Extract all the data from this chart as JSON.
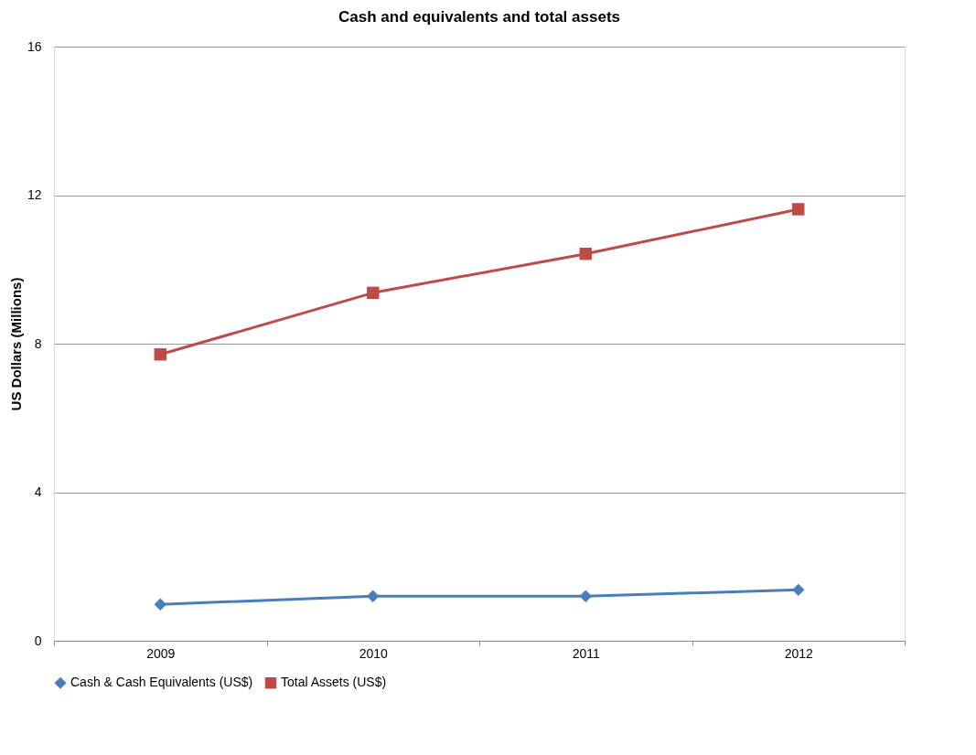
{
  "chart_data": {
    "type": "line",
    "title": "Cash and equivalents and total assets",
    "ylabel": "US Dollars (Millions)",
    "categories": [
      "2009",
      "2010",
      "2011",
      "2012"
    ],
    "series": [
      {
        "name": "Cash & Cash Equivalents (US$)",
        "color": "#4a7ebb",
        "marker": "diamond",
        "values": [
          0.98,
          1.2,
          1.2,
          1.37
        ]
      },
      {
        "name": "Total Assets (US$)",
        "color": "#be4b48",
        "marker": "square",
        "values": [
          7.71,
          9.37,
          10.42,
          11.62
        ]
      }
    ],
    "ylim": [
      0,
      16
    ],
    "yticks": [
      0,
      4,
      8,
      12,
      16
    ],
    "grid": "y",
    "legend": "bottom"
  }
}
